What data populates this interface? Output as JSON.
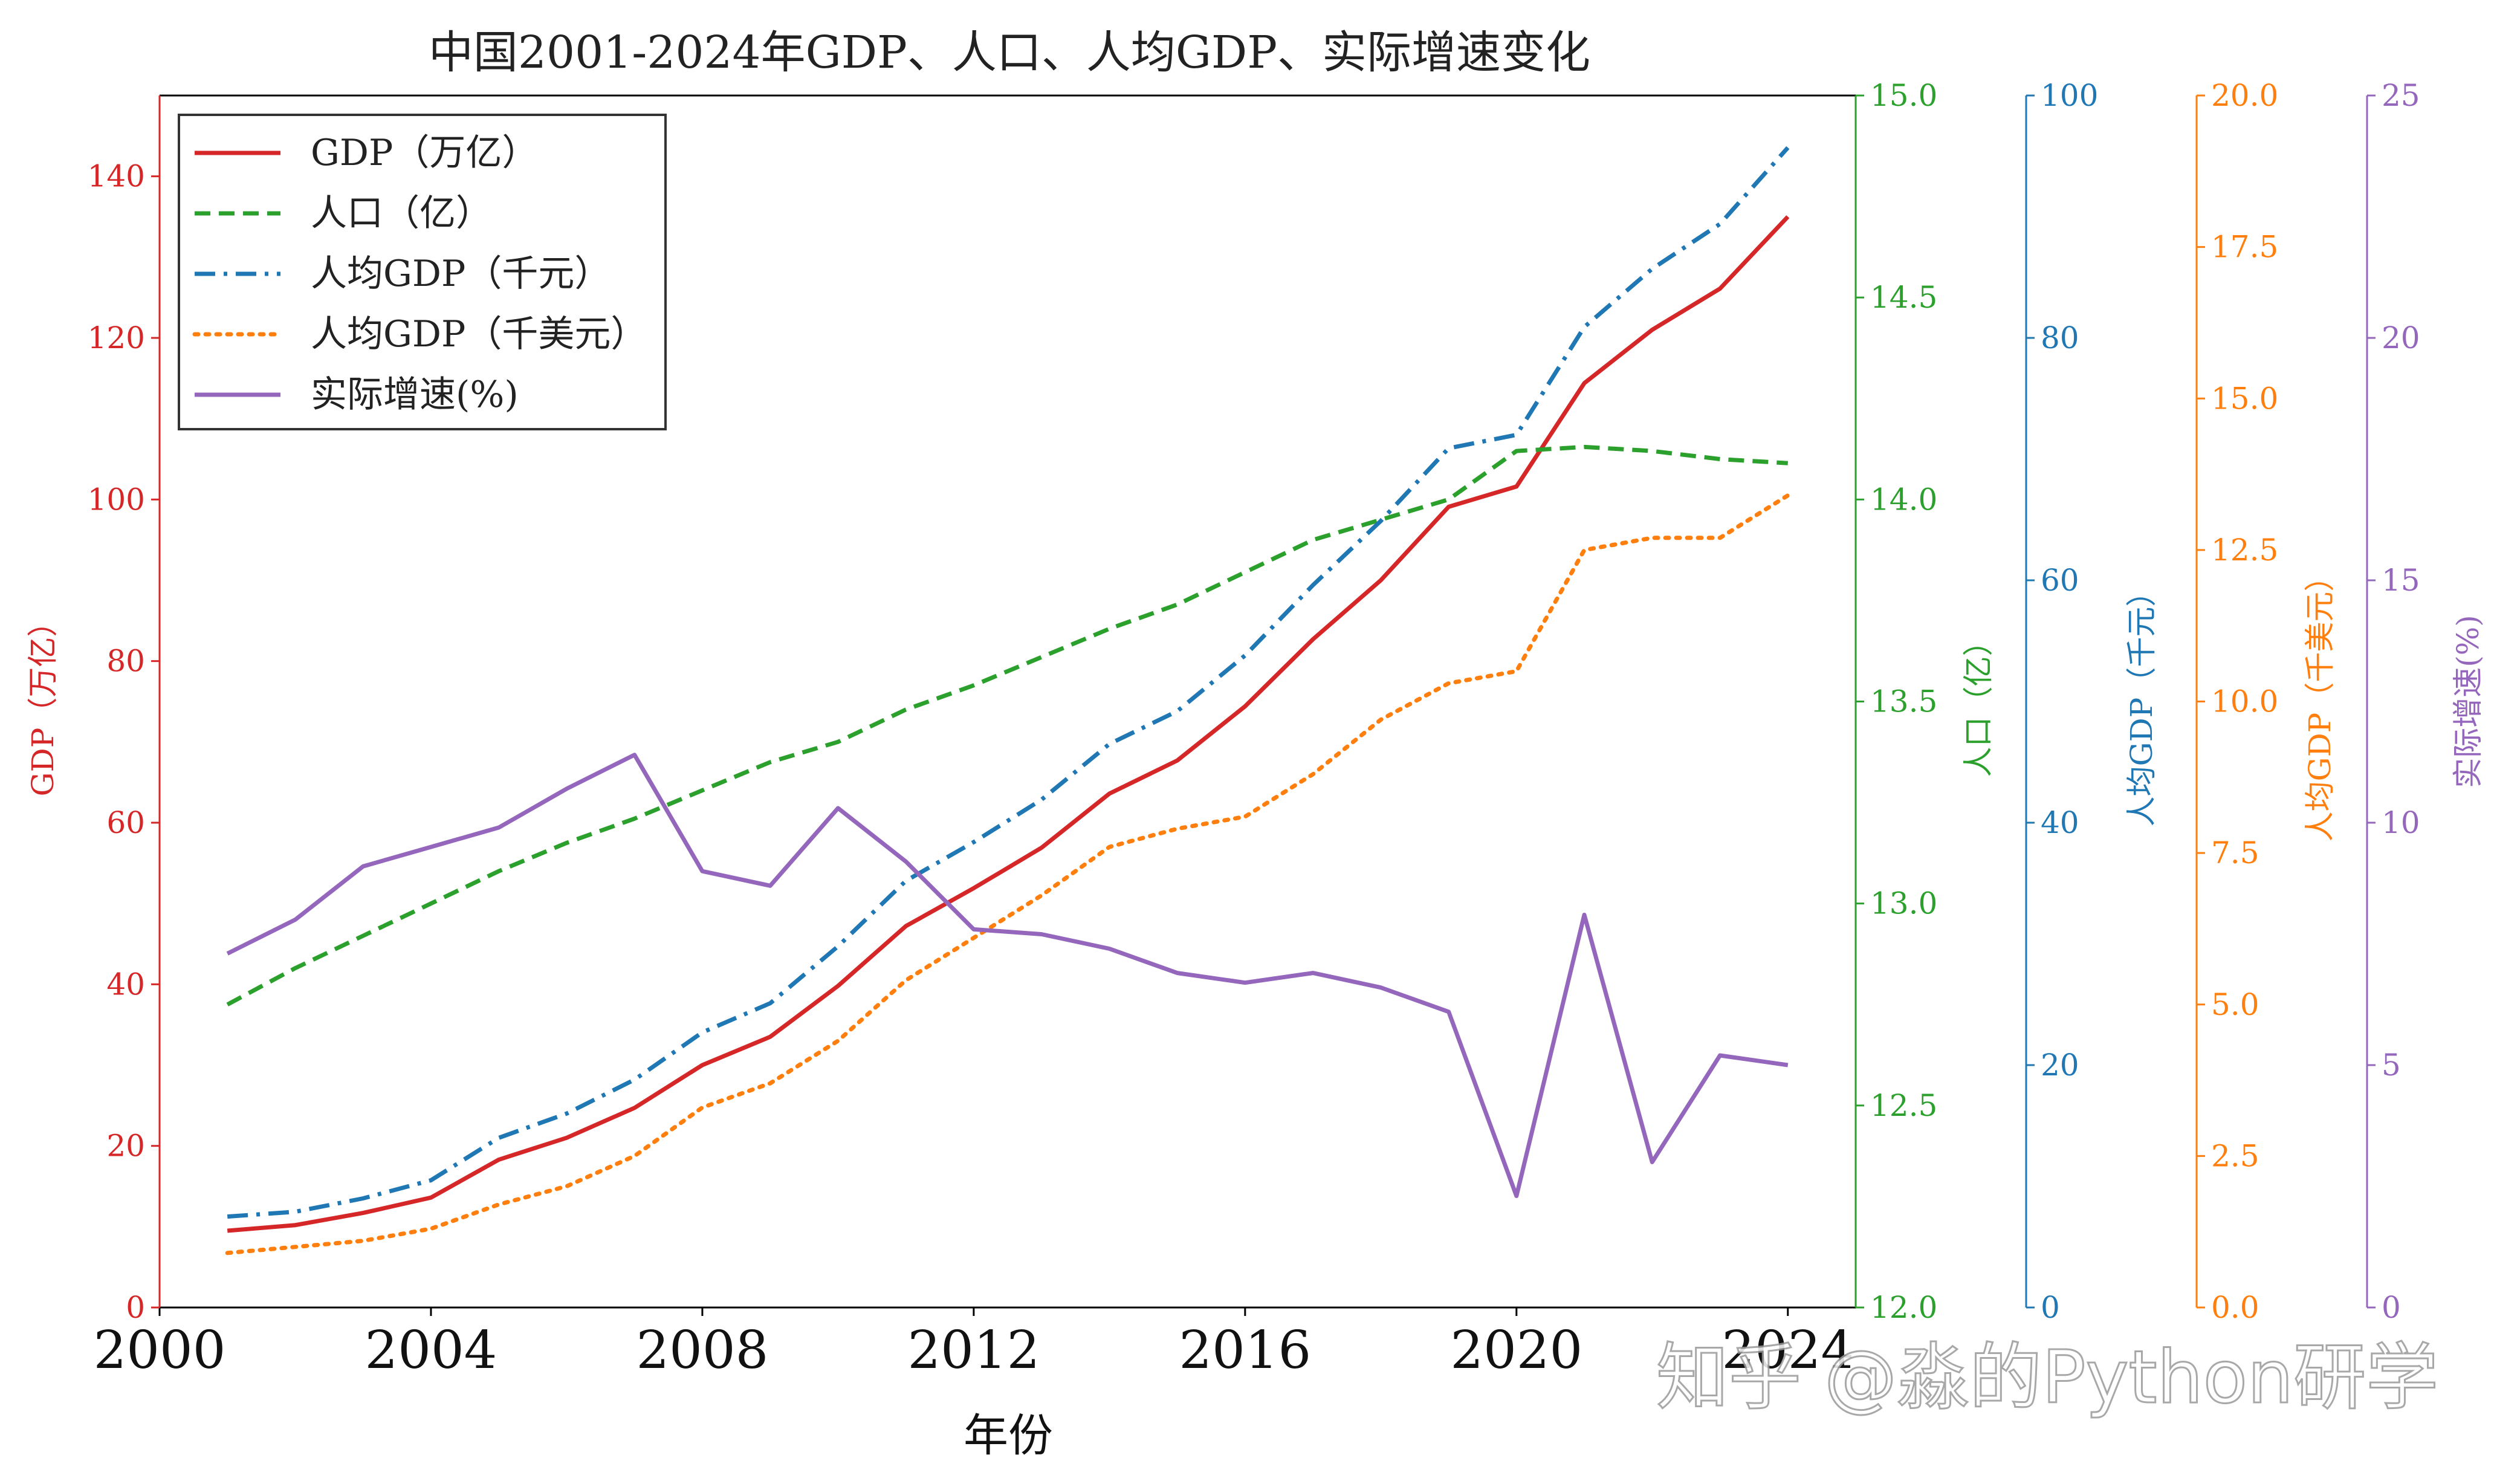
{
  "chart_data": {
    "type": "line",
    "title": "中国2001-2024年GDP、人口、人均GDP、实际增速变化",
    "xlabel": "年份",
    "x": [
      2001,
      2002,
      2003,
      2004,
      2005,
      2006,
      2007,
      2008,
      2009,
      2010,
      2011,
      2012,
      2013,
      2014,
      2015,
      2016,
      2017,
      2018,
      2019,
      2020,
      2021,
      2022,
      2023,
      2024
    ],
    "xlim": [
      2000,
      2025
    ],
    "xticks": [
      "2000",
      "2004",
      "2008",
      "2012",
      "2016",
      "2020",
      "2024"
    ],
    "grid": false,
    "legend_position": "upper-left",
    "series": [
      {
        "name": "GDP（万亿）",
        "axis": "left",
        "color": "#d62728",
        "dash": "solid",
        "values": [
          9.5,
          10.2,
          11.7,
          13.6,
          18.3,
          21.0,
          24.7,
          30.0,
          33.5,
          39.8,
          47.2,
          51.9,
          56.9,
          63.6,
          67.7,
          74.4,
          82.7,
          90.0,
          99.1,
          101.6,
          114.4,
          121.0,
          126.1,
          135.0
        ]
      },
      {
        "name": "人口（亿）",
        "axis": "right1",
        "color": "#2ca02c",
        "dash": "dashed",
        "values": [
          12.75,
          12.84,
          12.92,
          13.0,
          13.08,
          13.15,
          13.21,
          13.28,
          13.35,
          13.4,
          13.48,
          13.54,
          13.61,
          13.68,
          13.74,
          13.82,
          13.9,
          13.95,
          14.0,
          14.12,
          14.13,
          14.12,
          14.1,
          14.09
        ]
      },
      {
        "name": "人均GDP（千元）",
        "axis": "right2",
        "color": "#1f77b4",
        "dash": "dashdot",
        "values": [
          7.5,
          7.9,
          9.0,
          10.5,
          14.0,
          16.0,
          18.8,
          22.7,
          25.1,
          29.8,
          35.2,
          38.4,
          41.9,
          46.5,
          49.2,
          53.8,
          59.6,
          64.9,
          70.9,
          72.0,
          80.9,
          85.7,
          89.4,
          95.7
        ]
      },
      {
        "name": "人均GDP（千美元）",
        "axis": "right3",
        "color": "#ff7f0e",
        "dash": "dotted",
        "values": [
          0.9,
          1.0,
          1.1,
          1.3,
          1.7,
          2.0,
          2.5,
          3.3,
          3.7,
          4.4,
          5.4,
          6.1,
          6.8,
          7.6,
          7.9,
          8.1,
          8.8,
          9.7,
          10.3,
          10.5,
          12.5,
          12.7,
          12.7,
          13.4
        ]
      },
      {
        "name": "实际增速(%)",
        "axis": "right4",
        "color": "#9467bd",
        "dash": "solid",
        "values": [
          7.3,
          8.0,
          9.1,
          9.5,
          9.9,
          10.7,
          11.4,
          9.0,
          8.7,
          10.3,
          9.2,
          7.8,
          7.7,
          7.4,
          6.9,
          6.7,
          6.9,
          6.6,
          6.1,
          2.3,
          8.1,
          3.0,
          5.2,
          5.0
        ]
      }
    ],
    "axes": {
      "left": {
        "label": "GDP（万亿）",
        "color": "#d62728",
        "ylim": [
          0,
          150
        ],
        "ticks": [
          "0",
          "20",
          "40",
          "60",
          "80",
          "100",
          "120",
          "140"
        ]
      },
      "right1": {
        "label": "人口（亿）",
        "color": "#2ca02c",
        "ylim": [
          12.0,
          15.0
        ],
        "ticks": [
          "12.0",
          "12.5",
          "13.0",
          "13.5",
          "14.0",
          "14.5",
          "15.0"
        ]
      },
      "right2": {
        "label": "人均GDP（千元）",
        "color": "#1f77b4",
        "ylim": [
          0,
          100
        ],
        "ticks": [
          "0",
          "20",
          "40",
          "60",
          "80",
          "100"
        ]
      },
      "right3": {
        "label": "人均GDP（千美元）",
        "color": "#ff7f0e",
        "ylim": [
          0,
          20
        ],
        "ticks": [
          "0.0",
          "2.5",
          "5.0",
          "7.5",
          "10.0",
          "12.5",
          "15.0",
          "17.5",
          "20.0"
        ]
      },
      "right4": {
        "label": "实际增速(%)",
        "color": "#9467bd",
        "ylim": [
          0,
          25
        ],
        "ticks": [
          "0",
          "5",
          "10",
          "15",
          "20",
          "25"
        ]
      }
    }
  },
  "watermark": "知乎 @淼的Python研学"
}
